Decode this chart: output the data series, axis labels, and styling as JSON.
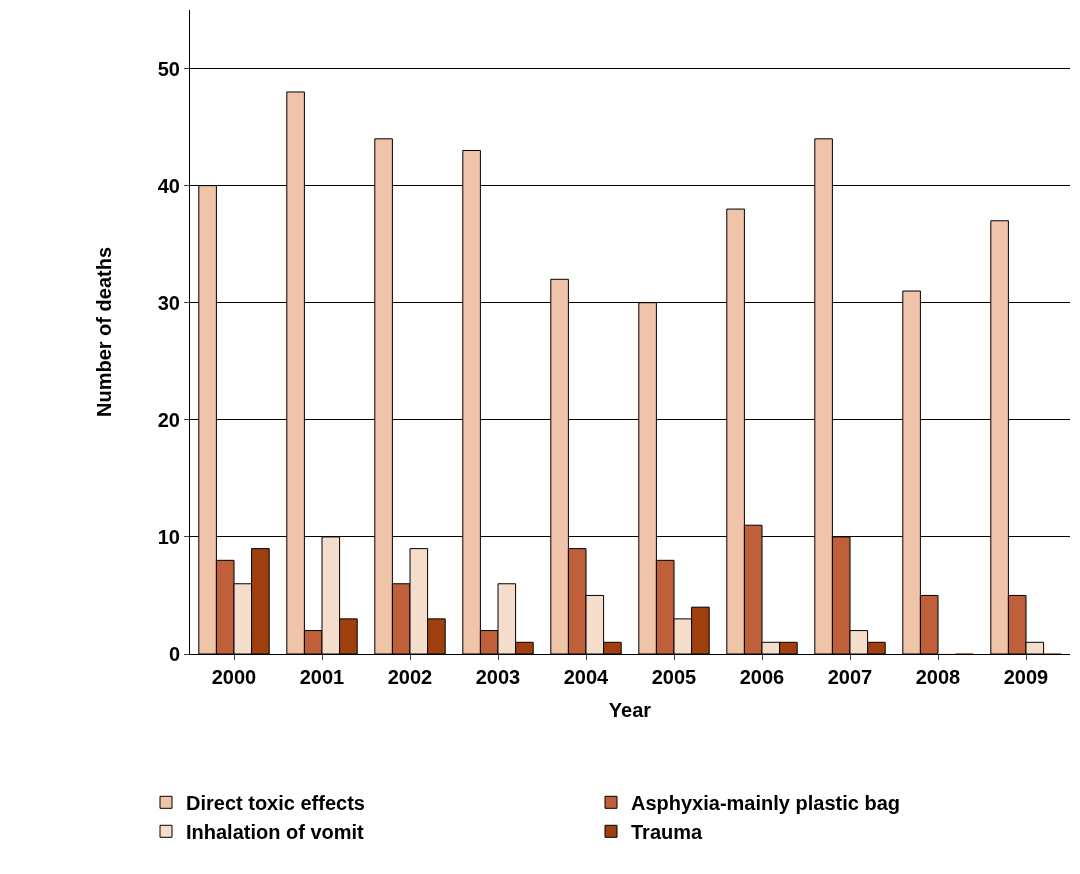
{
  "chart_data": {
    "type": "bar",
    "xlabel": "Year",
    "ylabel": "Number of deaths",
    "categories": [
      "2000",
      "2001",
      "2002",
      "2003",
      "2004",
      "2005",
      "2006",
      "2007",
      "2008",
      "2009"
    ],
    "series": [
      {
        "name": "Direct toxic effects",
        "color": "#f0c4a8",
        "values": [
          40,
          48,
          44,
          43,
          32,
          30,
          38,
          44,
          31,
          37
        ]
      },
      {
        "name": "Asphyxia-mainly plastic bag",
        "color": "#c0603a",
        "values": [
          8,
          2,
          6,
          2,
          9,
          8,
          11,
          10,
          5,
          5
        ]
      },
      {
        "name": "Inhalation of vomit",
        "color": "#f5ddcc",
        "values": [
          6,
          10,
          9,
          6,
          5,
          3,
          1,
          2,
          0,
          1
        ]
      },
      {
        "name": "Trauma",
        "color": "#a0400f",
        "values": [
          9,
          3,
          3,
          1,
          1,
          4,
          1,
          1,
          0,
          0
        ]
      }
    ],
    "ylim": [
      0,
      55
    ],
    "yticks": [
      0,
      10,
      20,
      30,
      40,
      50
    ],
    "grid": "y",
    "legend": "bottom"
  }
}
